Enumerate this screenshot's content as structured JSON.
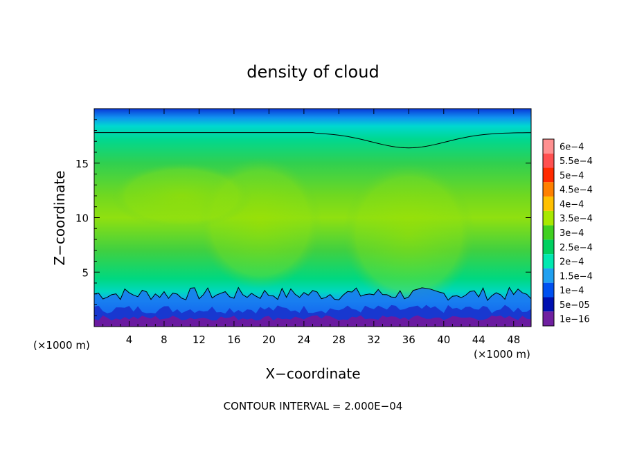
{
  "chart_data": {
    "type": "heatmap",
    "title": "density of cloud",
    "xlabel": "X−coordinate",
    "ylabel": "Z−coordinate",
    "x_unit_label_left": "(×1000 m)",
    "x_unit_label_right": "(×1000 m)",
    "xlim": [
      0,
      50
    ],
    "ylim": [
      0,
      20
    ],
    "x_ticks": [
      4,
      8,
      12,
      16,
      20,
      24,
      28,
      32,
      36,
      40,
      44,
      48
    ],
    "y_ticks": [
      5,
      10,
      15
    ],
    "contour_interval_text": "CONTOUR INTERVAL = 2.000E−04",
    "colorbar": {
      "labels": [
        "6e−4",
        "5.5e−4",
        "5e−4",
        "4.5e−4",
        "4e−4",
        "3.5e−4",
        "3e−4",
        "2.5e−4",
        "2e−4",
        "1.5e−4",
        "1e−4",
        "5e−05",
        "1e−16"
      ],
      "colors": [
        "#ff9090",
        "#ff5050",
        "#ff2a00",
        "#ff8000",
        "#ffc000",
        "#a8e800",
        "#40d020",
        "#00d060",
        "#00e8b0",
        "#20a0f0",
        "#0050f0",
        "#0010b0",
        "#7020a0"
      ]
    }
  }
}
